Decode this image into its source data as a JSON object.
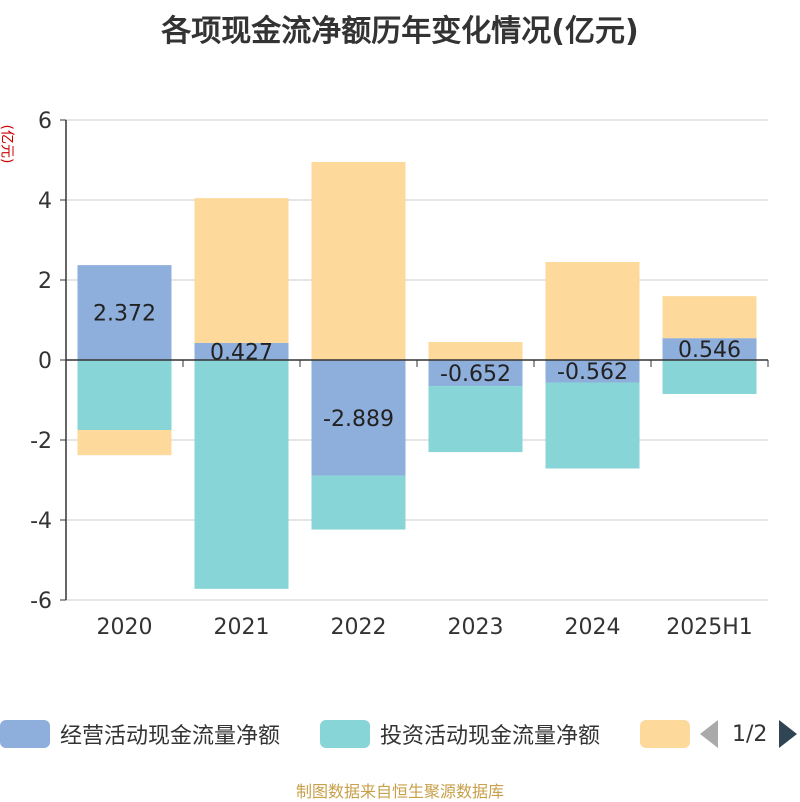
{
  "title": "各项现金流净额历年变化情况(亿元)",
  "unit_label": "(亿元)",
  "footer": "制图数据来自恒生聚源数据库",
  "legend": {
    "items": [
      {
        "label": "经营活动现金流量净额",
        "color": "#8eaedb"
      },
      {
        "label": "投资活动现金流量净额",
        "color": "#87d5d7"
      },
      {
        "label": "",
        "color": "#fdd99b"
      }
    ],
    "page": "1/2"
  },
  "chart_data": {
    "type": "bar",
    "stacked": true,
    "categories": [
      "2020",
      "2021",
      "2022",
      "2023",
      "2024",
      "2025H1"
    ],
    "ylim": [
      -6,
      6
    ],
    "yticks": [
      -6,
      -4,
      -2,
      0,
      2,
      4,
      6
    ],
    "grid": true,
    "legend_position": "bottom",
    "series": [
      {
        "name": "经营活动现金流量净额",
        "color": "#8eaedb",
        "values": [
          2.372,
          0.427,
          -2.889,
          -0.652,
          -0.562,
          0.546
        ],
        "labels": true
      },
      {
        "name": "投资活动现金流量净额",
        "color": "#87d5d7",
        "values": [
          -1.75,
          -5.72,
          -1.35,
          -1.65,
          -2.15,
          -0.85
        ],
        "labels": false
      },
      {
        "color": "#fdd99b",
        "values": [
          -0.63,
          3.62,
          4.95,
          0.45,
          2.45,
          1.05
        ],
        "labels": false
      }
    ]
  }
}
